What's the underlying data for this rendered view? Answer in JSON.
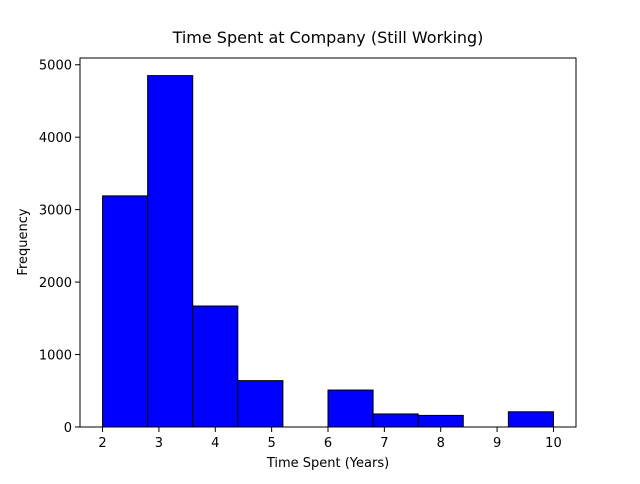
{
  "chart_data": {
    "type": "histogram",
    "title": "Time Spent at Company (Still Working)",
    "xlabel": "Time Spent (Years)",
    "ylabel": "Frequency",
    "bins": [
      2,
      2.8,
      3.6,
      4.4,
      5.2,
      6.0,
      6.8,
      7.6,
      8.4,
      9.2,
      10
    ],
    "values": [
      3190,
      4850,
      1670,
      640,
      0,
      510,
      180,
      160,
      0,
      210
    ],
    "color": "#0000ff",
    "edgecolor": "#000000",
    "xlim": [
      1.6,
      10.4
    ],
    "ylim": [
      0,
      5093
    ],
    "xticks": [
      2,
      3,
      4,
      5,
      6,
      7,
      8,
      9,
      10
    ],
    "yticks": [
      0,
      1000,
      2000,
      3000,
      4000,
      5000
    ],
    "grid": false
  }
}
